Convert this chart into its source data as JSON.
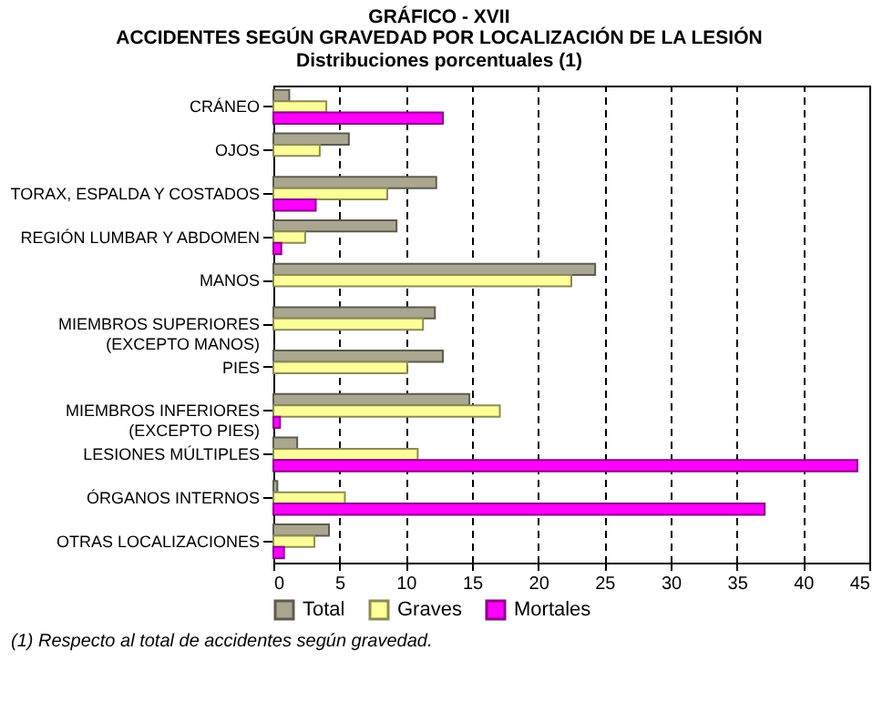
{
  "chart_data": {
    "type": "bar",
    "orientation": "horizontal",
    "title": "GRÁFICO - XVII",
    "subtitle": "ACCIDENTES SEGÚN GRAVEDAD POR LOCALIZACIÓN DE LA LESIÓN\nDistribuciones porcentuales (1)",
    "categories": [
      "CRÁNEO",
      "OJOS",
      "TORAX, ESPALDA Y COSTADOS",
      "REGIÓN LUMBAR Y ABDOMEN",
      "MANOS",
      "MIEMBROS SUPERIORES (EXCEPTO MANOS)",
      "PIES",
      "MIEMBROS INFERIORES (EXCEPTO PIES)",
      "LESIONES MÚLTIPLES",
      "ÓRGANOS INTERNOS",
      "OTRAS LOCALIZACIONES"
    ],
    "series": [
      {
        "name": "Total",
        "color": "#aaa690",
        "values": [
          1.2,
          5.7,
          12.3,
          9.3,
          24.3,
          12.2,
          12.8,
          14.8,
          1.8,
          0.3,
          4.2
        ]
      },
      {
        "name": "Graves",
        "color": "#ffff99",
        "values": [
          4.0,
          3.5,
          8.6,
          2.4,
          22.5,
          11.3,
          10.1,
          17.1,
          10.9,
          5.4,
          3.1
        ]
      },
      {
        "name": "Mortales",
        "color": "#ff00ff",
        "values": [
          12.8,
          null,
          3.2,
          0.6,
          null,
          null,
          null,
          0.5,
          44.1,
          37.1,
          0.8
        ]
      }
    ],
    "xlim": [
      0,
      45
    ],
    "xticks": [
      0,
      5,
      10,
      15,
      20,
      25,
      30,
      35,
      40,
      45
    ],
    "grid": "x",
    "legend": "bottom",
    "annotations": [
      "(1) Respecto al total de accidentes según gravedad."
    ]
  }
}
